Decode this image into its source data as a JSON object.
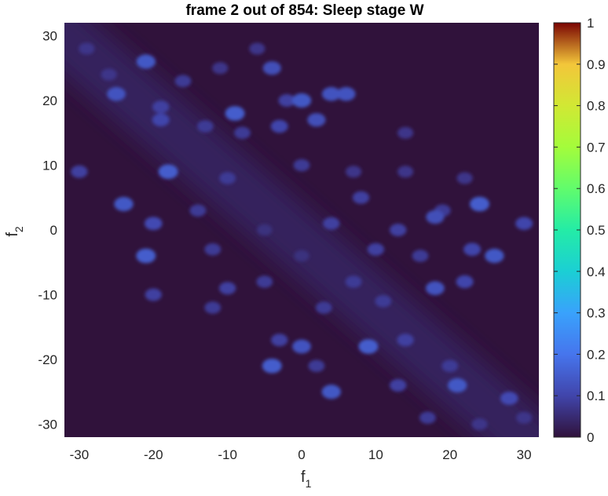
{
  "chart_data": {
    "type": "heatmap",
    "title": "frame 2 out of 854: Sleep stage W",
    "xlabel": {
      "base": "f",
      "sub": "1"
    },
    "ylabel": {
      "base": "f",
      "sub": "2"
    },
    "xlim": [
      -32,
      32
    ],
    "ylim": [
      -32,
      32
    ],
    "xticks": [
      -30,
      -20,
      -10,
      0,
      10,
      20,
      30
    ],
    "yticks": [
      -30,
      -20,
      -10,
      0,
      10,
      20,
      30
    ],
    "xticklabels": [
      "-30",
      "-20",
      "-10",
      "0",
      "10",
      "20",
      "30"
    ],
    "yticklabels": [
      "-30",
      "-20",
      "-10",
      "0",
      "10",
      "20",
      "30"
    ],
    "colorbar": {
      "range": [
        0,
        1
      ],
      "ticks": [
        0,
        0.1,
        0.2,
        0.3,
        0.4,
        0.5,
        0.6,
        0.7,
        0.8,
        0.9,
        1
      ],
      "ticklabels": [
        "0",
        "0.1",
        "0.2",
        "0.3",
        "0.4",
        "0.5",
        "0.6",
        "0.7",
        "0.8",
        "0.9",
        "1"
      ],
      "colormap": "turbo"
    },
    "background_value": 0.0,
    "band": {
      "center_value": 0.03,
      "direction": "f1 + f2 = 0 diagonal"
    },
    "hotspots": [
      {
        "x": -29,
        "y": 28,
        "v": 0.07
      },
      {
        "x": -26,
        "y": 24,
        "v": 0.07
      },
      {
        "x": -21,
        "y": 26,
        "v": 0.14
      },
      {
        "x": -16,
        "y": 23,
        "v": 0.08
      },
      {
        "x": -11,
        "y": 25,
        "v": 0.07
      },
      {
        "x": -6,
        "y": 28,
        "v": 0.07
      },
      {
        "x": -4,
        "y": 25,
        "v": 0.12
      },
      {
        "x": -25,
        "y": 21,
        "v": 0.13
      },
      {
        "x": -19,
        "y": 19,
        "v": 0.09
      },
      {
        "x": -9,
        "y": 18,
        "v": 0.15
      },
      {
        "x": -2,
        "y": 20,
        "v": 0.09
      },
      {
        "x": 0,
        "y": 20,
        "v": 0.14
      },
      {
        "x": 2,
        "y": 17,
        "v": 0.12
      },
      {
        "x": 4,
        "y": 21,
        "v": 0.13
      },
      {
        "x": 6,
        "y": 21,
        "v": 0.13
      },
      {
        "x": -19,
        "y": 17,
        "v": 0.1
      },
      {
        "x": -13,
        "y": 16,
        "v": 0.08
      },
      {
        "x": -8,
        "y": 15,
        "v": 0.08
      },
      {
        "x": -3,
        "y": 16,
        "v": 0.1
      },
      {
        "x": 14,
        "y": 15,
        "v": 0.07
      },
      {
        "x": -30,
        "y": 9,
        "v": 0.09
      },
      {
        "x": -18,
        "y": 9,
        "v": 0.15
      },
      {
        "x": -10,
        "y": 8,
        "v": 0.08
      },
      {
        "x": 0,
        "y": 10,
        "v": 0.08
      },
      {
        "x": 7,
        "y": 9,
        "v": 0.07
      },
      {
        "x": 14,
        "y": 9,
        "v": 0.07
      },
      {
        "x": 22,
        "y": 8,
        "v": 0.07
      },
      {
        "x": -24,
        "y": 4,
        "v": 0.14
      },
      {
        "x": -14,
        "y": 3,
        "v": 0.08
      },
      {
        "x": 8,
        "y": 5,
        "v": 0.09
      },
      {
        "x": 19,
        "y": 3,
        "v": 0.08
      },
      {
        "x": 24,
        "y": 4,
        "v": 0.15
      },
      {
        "x": -20,
        "y": 1,
        "v": 0.11
      },
      {
        "x": -5,
        "y": 0,
        "v": 0.06
      },
      {
        "x": 13,
        "y": 0,
        "v": 0.09
      },
      {
        "x": 18,
        "y": 2,
        "v": 0.12
      },
      {
        "x": 30,
        "y": 1,
        "v": 0.1
      },
      {
        "x": 4,
        "y": 1,
        "v": 0.09
      },
      {
        "x": -21,
        "y": -4,
        "v": 0.15
      },
      {
        "x": -12,
        "y": -3,
        "v": 0.08
      },
      {
        "x": 0,
        "y": -4,
        "v": 0.06
      },
      {
        "x": 10,
        "y": -3,
        "v": 0.09
      },
      {
        "x": 16,
        "y": -4,
        "v": 0.08
      },
      {
        "x": 23,
        "y": -3,
        "v": 0.1
      },
      {
        "x": 26,
        "y": -4,
        "v": 0.14
      },
      {
        "x": -10,
        "y": -9,
        "v": 0.09
      },
      {
        "x": -5,
        "y": -8,
        "v": 0.08
      },
      {
        "x": 7,
        "y": -8,
        "v": 0.08
      },
      {
        "x": 18,
        "y": -9,
        "v": 0.13
      },
      {
        "x": 22,
        "y": -8,
        "v": 0.1
      },
      {
        "x": -20,
        "y": -10,
        "v": 0.09
      },
      {
        "x": -12,
        "y": -12,
        "v": 0.08
      },
      {
        "x": 3,
        "y": -12,
        "v": 0.08
      },
      {
        "x": 11,
        "y": -11,
        "v": 0.08
      },
      {
        "x": -3,
        "y": -17,
        "v": 0.09
      },
      {
        "x": 0,
        "y": -18,
        "v": 0.13
      },
      {
        "x": 9,
        "y": -18,
        "v": 0.15
      },
      {
        "x": 14,
        "y": -17,
        "v": 0.09
      },
      {
        "x": -4,
        "y": -21,
        "v": 0.15
      },
      {
        "x": 2,
        "y": -21,
        "v": 0.08
      },
      {
        "x": 20,
        "y": -21,
        "v": 0.08
      },
      {
        "x": 4,
        "y": -25,
        "v": 0.14
      },
      {
        "x": 13,
        "y": -24,
        "v": 0.09
      },
      {
        "x": 21,
        "y": -24,
        "v": 0.14
      },
      {
        "x": 28,
        "y": -26,
        "v": 0.11
      },
      {
        "x": 17,
        "y": -29,
        "v": 0.08
      },
      {
        "x": 24,
        "y": -30,
        "v": 0.07
      },
      {
        "x": 30,
        "y": -29,
        "v": 0.07
      }
    ]
  }
}
